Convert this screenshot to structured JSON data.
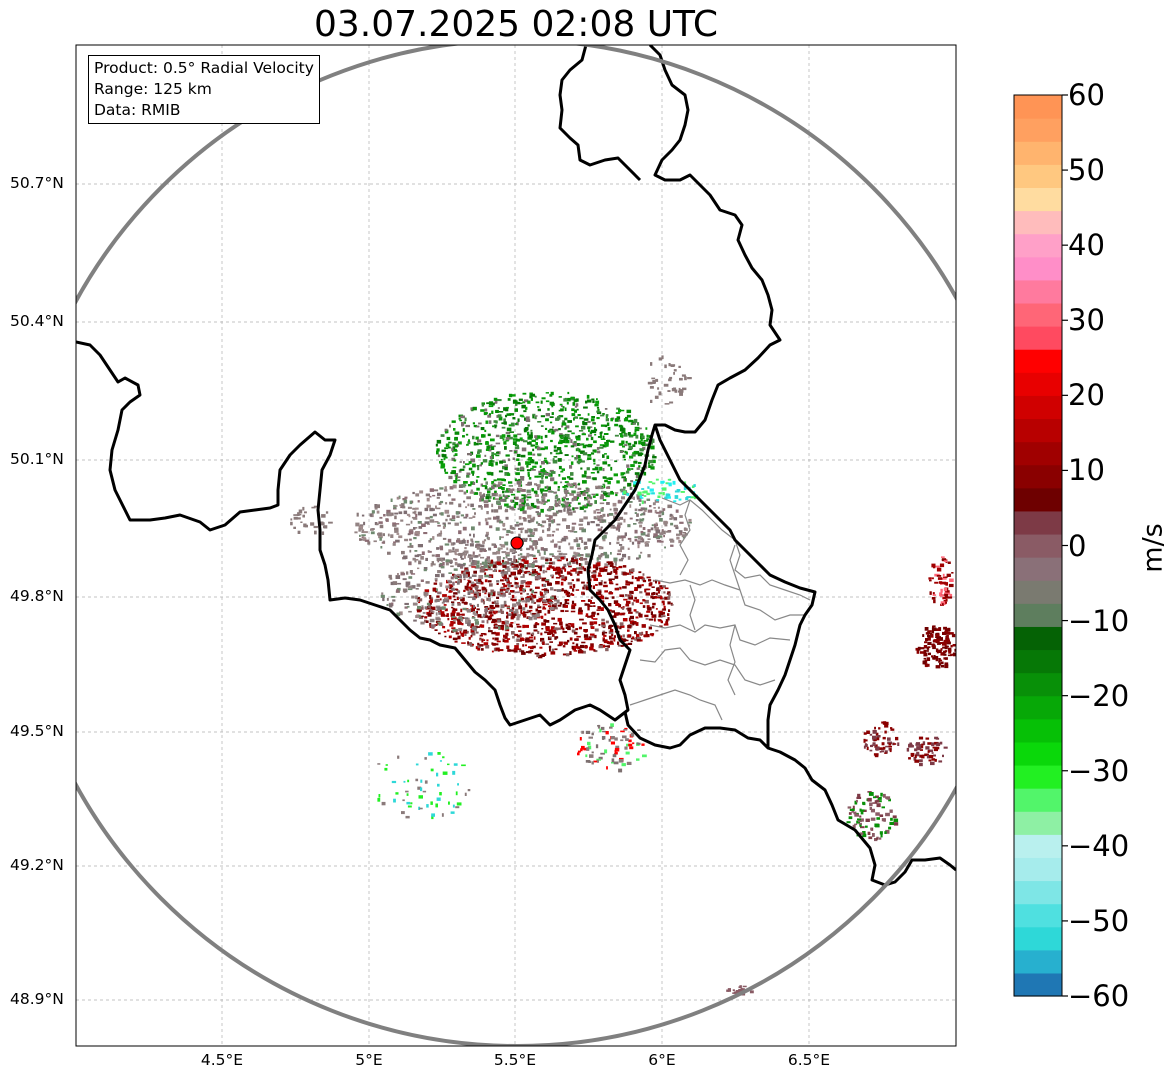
{
  "title": "03.07.2025 02:08 UTC",
  "info": {
    "product": "Product: 0.5° Radial Velocity",
    "range": "Range: 125 km",
    "data": "Data: RMIB"
  },
  "lat_ticks": [
    "50.7°N",
    "50.4°N",
    "50.1°N",
    "49.8°N",
    "49.5°N",
    "49.2°N",
    "48.9°N"
  ],
  "lon_ticks": [
    "4.5°E",
    "5°E",
    "5.5°E",
    "6°E",
    "6.5°E"
  ],
  "colorbar": {
    "label": "m/s",
    "ticks": [
      "60",
      "50",
      "40",
      "30",
      "20",
      "10",
      "0",
      "−10",
      "−20",
      "−30",
      "−40",
      "−50",
      "−60"
    ],
    "min": -60,
    "max": 60,
    "colors": [
      "#1f77b4",
      "#27b0cf",
      "#2ed8d8",
      "#4fe0e0",
      "#7ee6e6",
      "#a6ecec",
      "#b9f0ee",
      "#8ef0a4",
      "#52f56a",
      "#22f022",
      "#0ad80a",
      "#06c006",
      "#07a807",
      "#089008",
      "#067806",
      "#056205",
      "#5e7e5e",
      "#7a7a70",
      "#8a7078",
      "#8a5b65",
      "#7d3a46",
      "#6e0000",
      "#8a0000",
      "#a00000",
      "#b80000",
      "#d00000",
      "#e80000",
      "#ff0000",
      "#ff4a60",
      "#ff6677",
      "#ff7a9e",
      "#ff8ec8",
      "#ffa0c8",
      "#ffbcbc",
      "#ffdca0",
      "#ffc880",
      "#ffb46e",
      "#ffa060",
      "#ff9455"
    ]
  },
  "colors": {
    "range_ring": "#808080",
    "border": "#000000",
    "region_border": "#888888",
    "radar_site": "#ff0000"
  }
}
